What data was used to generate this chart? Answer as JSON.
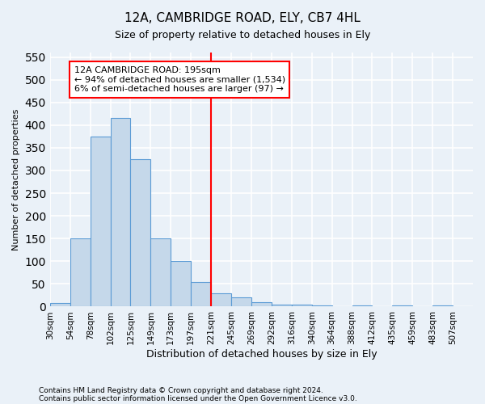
{
  "title1": "12A, CAMBRIDGE ROAD, ELY, CB7 4HL",
  "title2": "Size of property relative to detached houses in Ely",
  "xlabel": "Distribution of detached houses by size in Ely",
  "ylabel": "Number of detached properties",
  "footnote1": "Contains HM Land Registry data © Crown copyright and database right 2024.",
  "footnote2": "Contains public sector information licensed under the Open Government Licence v3.0.",
  "bin_labels": [
    "30sqm",
    "54sqm",
    "78sqm",
    "102sqm",
    "125sqm",
    "149sqm",
    "173sqm",
    "197sqm",
    "221sqm",
    "245sqm",
    "269sqm",
    "292sqm",
    "316sqm",
    "340sqm",
    "364sqm",
    "388sqm",
    "412sqm",
    "435sqm",
    "459sqm",
    "483sqm",
    "507sqm"
  ],
  "bar_values": [
    8,
    150,
    375,
    415,
    325,
    150,
    100,
    55,
    30,
    20,
    10,
    5,
    4,
    3,
    0,
    3,
    0,
    2,
    0,
    2,
    1
  ],
  "bar_color": "#c5d8ea",
  "bar_edge_color": "#5b9bd5",
  "vline_bin_index": 7,
  "vline_color": "red",
  "ylim": [
    0,
    560
  ],
  "yticks": [
    0,
    50,
    100,
    150,
    200,
    250,
    300,
    350,
    400,
    450,
    500,
    550
  ],
  "annotation_text": "12A CAMBRIDGE ROAD: 195sqm\n← 94% of detached houses are smaller (1,534)\n6% of semi-detached houses are larger (97) →",
  "annotation_box_color": "white",
  "annotation_box_edge": "red",
  "background_color": "#eaf1f8",
  "grid_color": "white"
}
